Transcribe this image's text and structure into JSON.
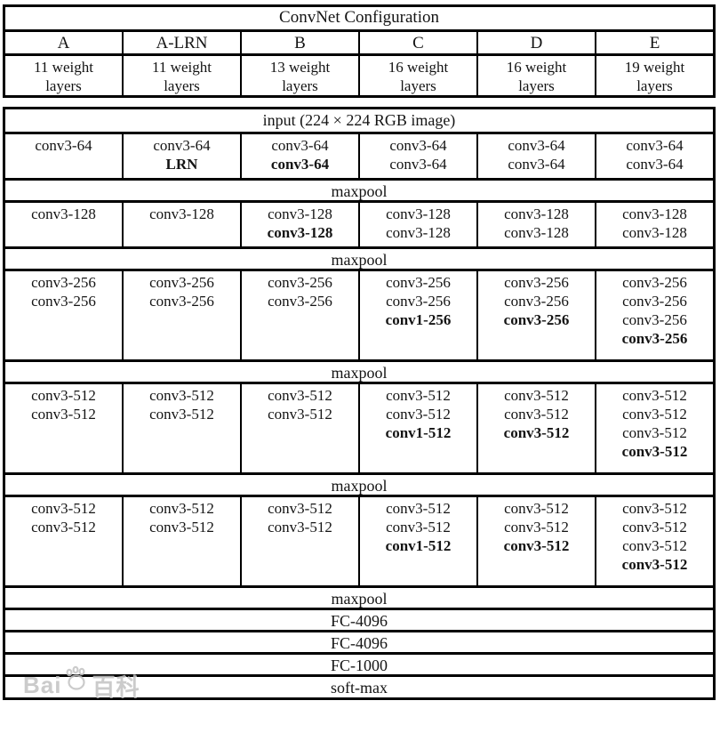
{
  "header": {
    "title": "ConvNet Configuration",
    "columns": [
      "A",
      "A-LRN",
      "B",
      "C",
      "D",
      "E"
    ],
    "weights": [
      [
        "11 weight",
        "layers"
      ],
      [
        "11 weight",
        "layers"
      ],
      [
        "13 weight",
        "layers"
      ],
      [
        "16 weight",
        "layers"
      ],
      [
        "16 weight",
        "layers"
      ],
      [
        "19 weight",
        "layers"
      ]
    ]
  },
  "body": {
    "rows": [
      {
        "kind": "span",
        "name": "input-row",
        "text": "input (224 × 224 RGB image)"
      },
      {
        "kind": "cols",
        "name": "conv-block-64",
        "cells": [
          [
            {
              "text": "conv3-64",
              "bold": false
            }
          ],
          [
            {
              "text": "conv3-64",
              "bold": false
            },
            {
              "text": "LRN",
              "bold": true
            }
          ],
          [
            {
              "text": "conv3-64",
              "bold": false
            },
            {
              "text": "conv3-64",
              "bold": true
            }
          ],
          [
            {
              "text": "conv3-64",
              "bold": false
            },
            {
              "text": "conv3-64",
              "bold": false
            }
          ],
          [
            {
              "text": "conv3-64",
              "bold": false
            },
            {
              "text": "conv3-64",
              "bold": false
            }
          ],
          [
            {
              "text": "conv3-64",
              "bold": false
            },
            {
              "text": "conv3-64",
              "bold": false
            }
          ]
        ]
      },
      {
        "kind": "span",
        "name": "maxpool-row",
        "text": "maxpool"
      },
      {
        "kind": "cols",
        "name": "conv-block-128",
        "cells": [
          [
            {
              "text": "conv3-128",
              "bold": false
            }
          ],
          [
            {
              "text": "conv3-128",
              "bold": false
            }
          ],
          [
            {
              "text": "conv3-128",
              "bold": false
            },
            {
              "text": "conv3-128",
              "bold": true
            }
          ],
          [
            {
              "text": "conv3-128",
              "bold": false
            },
            {
              "text": "conv3-128",
              "bold": false
            }
          ],
          [
            {
              "text": "conv3-128",
              "bold": false
            },
            {
              "text": "conv3-128",
              "bold": false
            }
          ],
          [
            {
              "text": "conv3-128",
              "bold": false
            },
            {
              "text": "conv3-128",
              "bold": false
            }
          ]
        ]
      },
      {
        "kind": "span",
        "name": "maxpool-row",
        "text": "maxpool"
      },
      {
        "kind": "cols",
        "name": "conv-block-256",
        "cells": [
          [
            {
              "text": "conv3-256",
              "bold": false
            },
            {
              "text": "conv3-256",
              "bold": false
            }
          ],
          [
            {
              "text": "conv3-256",
              "bold": false
            },
            {
              "text": "conv3-256",
              "bold": false
            }
          ],
          [
            {
              "text": "conv3-256",
              "bold": false
            },
            {
              "text": "conv3-256",
              "bold": false
            }
          ],
          [
            {
              "text": "conv3-256",
              "bold": false
            },
            {
              "text": "conv3-256",
              "bold": false
            },
            {
              "text": "conv1-256",
              "bold": true
            }
          ],
          [
            {
              "text": "conv3-256",
              "bold": false
            },
            {
              "text": "conv3-256",
              "bold": false
            },
            {
              "text": "conv3-256",
              "bold": true
            }
          ],
          [
            {
              "text": "conv3-256",
              "bold": false
            },
            {
              "text": "conv3-256",
              "bold": false
            },
            {
              "text": "conv3-256",
              "bold": false
            },
            {
              "text": "conv3-256",
              "bold": true
            }
          ]
        ]
      },
      {
        "kind": "span",
        "name": "maxpool-row",
        "text": "maxpool"
      },
      {
        "kind": "cols",
        "name": "conv-block-512-first",
        "cells": [
          [
            {
              "text": "conv3-512",
              "bold": false
            },
            {
              "text": "conv3-512",
              "bold": false
            }
          ],
          [
            {
              "text": "conv3-512",
              "bold": false
            },
            {
              "text": "conv3-512",
              "bold": false
            }
          ],
          [
            {
              "text": "conv3-512",
              "bold": false
            },
            {
              "text": "conv3-512",
              "bold": false
            }
          ],
          [
            {
              "text": "conv3-512",
              "bold": false
            },
            {
              "text": "conv3-512",
              "bold": false
            },
            {
              "text": "conv1-512",
              "bold": true
            }
          ],
          [
            {
              "text": "conv3-512",
              "bold": false
            },
            {
              "text": "conv3-512",
              "bold": false
            },
            {
              "text": "conv3-512",
              "bold": true
            }
          ],
          [
            {
              "text": "conv3-512",
              "bold": false
            },
            {
              "text": "conv3-512",
              "bold": false
            },
            {
              "text": "conv3-512",
              "bold": false
            },
            {
              "text": "conv3-512",
              "bold": true
            }
          ]
        ]
      },
      {
        "kind": "span",
        "name": "maxpool-row",
        "text": "maxpool"
      },
      {
        "kind": "cols",
        "name": "conv-block-512-second",
        "cells": [
          [
            {
              "text": "conv3-512",
              "bold": false
            },
            {
              "text": "conv3-512",
              "bold": false
            }
          ],
          [
            {
              "text": "conv3-512",
              "bold": false
            },
            {
              "text": "conv3-512",
              "bold": false
            }
          ],
          [
            {
              "text": "conv3-512",
              "bold": false
            },
            {
              "text": "conv3-512",
              "bold": false
            }
          ],
          [
            {
              "text": "conv3-512",
              "bold": false
            },
            {
              "text": "conv3-512",
              "bold": false
            },
            {
              "text": "conv1-512",
              "bold": true
            }
          ],
          [
            {
              "text": "conv3-512",
              "bold": false
            },
            {
              "text": "conv3-512",
              "bold": false
            },
            {
              "text": "conv3-512",
              "bold": true
            }
          ],
          [
            {
              "text": "conv3-512",
              "bold": false
            },
            {
              "text": "conv3-512",
              "bold": false
            },
            {
              "text": "conv3-512",
              "bold": false
            },
            {
              "text": "conv3-512",
              "bold": true
            }
          ]
        ]
      },
      {
        "kind": "span",
        "name": "maxpool-row",
        "text": "maxpool"
      },
      {
        "kind": "span",
        "name": "fc-row",
        "text": "FC-4096"
      },
      {
        "kind": "span",
        "name": "fc-row",
        "text": "FC-4096"
      },
      {
        "kind": "span",
        "name": "fc-row",
        "text": "FC-1000"
      },
      {
        "kind": "span",
        "name": "softmax-row",
        "text": "soft-max"
      }
    ]
  },
  "watermark": {
    "prefix": "Bai",
    "suffix": "百科",
    "icon": "baidu-paw-icon"
  },
  "colors": {
    "border": "#000000",
    "text": "#141414",
    "watermark": "#c2c2c2",
    "background": "#ffffff"
  }
}
